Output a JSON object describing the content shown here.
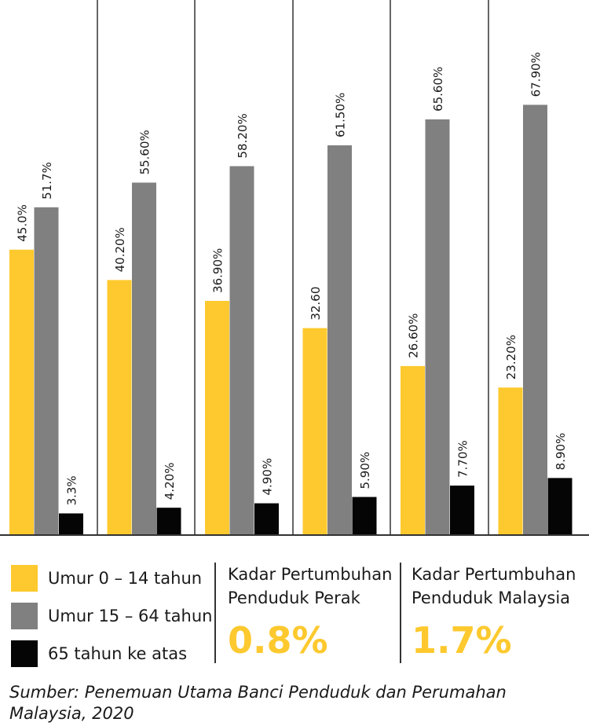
{
  "colors": {
    "yellow": "#fdc92e",
    "grey": "#808080",
    "black": "#050505",
    "divider": "#333333",
    "text": "#1a1a1a"
  },
  "chart_data": {
    "type": "bar",
    "title": "",
    "xlabel": "",
    "ylabel": "",
    "categories": [
      "",
      "",
      "",
      "",
      "",
      ""
    ],
    "ylim": [
      0,
      72
    ],
    "series": [
      {
        "name": "Umur 0 – 14 tahun",
        "color": "#fdc92e",
        "values": [
          45.0,
          40.2,
          36.9,
          32.6,
          26.6,
          23.2
        ],
        "labels": [
          "45.0%",
          "40.20%",
          "36.90%",
          "32.60",
          "26.60%",
          "23.20%"
        ]
      },
      {
        "name": "Umur 15 – 64 tahun",
        "color": "#808080",
        "values": [
          51.7,
          55.6,
          58.2,
          61.5,
          65.6,
          67.9
        ],
        "labels": [
          "51.7%",
          "55.60%",
          "58.20%",
          "61.50%",
          "65.60%",
          "67.90%"
        ]
      },
      {
        "name": "65 tahun ke atas",
        "color": "#050505",
        "values": [
          3.3,
          4.2,
          4.9,
          5.9,
          7.7,
          8.9
        ],
        "labels": [
          "3.3%",
          "4.20%",
          "4.90%",
          "5.90%",
          "7.70%",
          "8.90%"
        ]
      }
    ],
    "grid": false,
    "legend": "bottom-left"
  },
  "legend": {
    "items": [
      {
        "label": "Umur 0 – 14 tahun",
        "color": "#fdc92e"
      },
      {
        "label": "Umur 15 – 64 tahun",
        "color": "#808080"
      },
      {
        "label": "65 tahun ke atas",
        "color": "#050505"
      }
    ]
  },
  "stats": {
    "perak": {
      "line1": "Kadar Pertumbuhan",
      "line2": "Penduduk Perak",
      "value": "0.8%"
    },
    "malaysia": {
      "line1": "Kadar Pertumbuhan",
      "line2": "Penduduk Malaysia",
      "value": "1.7%"
    }
  },
  "source": "Sumber: Penemuan Utama Banci Penduduk dan Perumahan Malaysia, 2020"
}
